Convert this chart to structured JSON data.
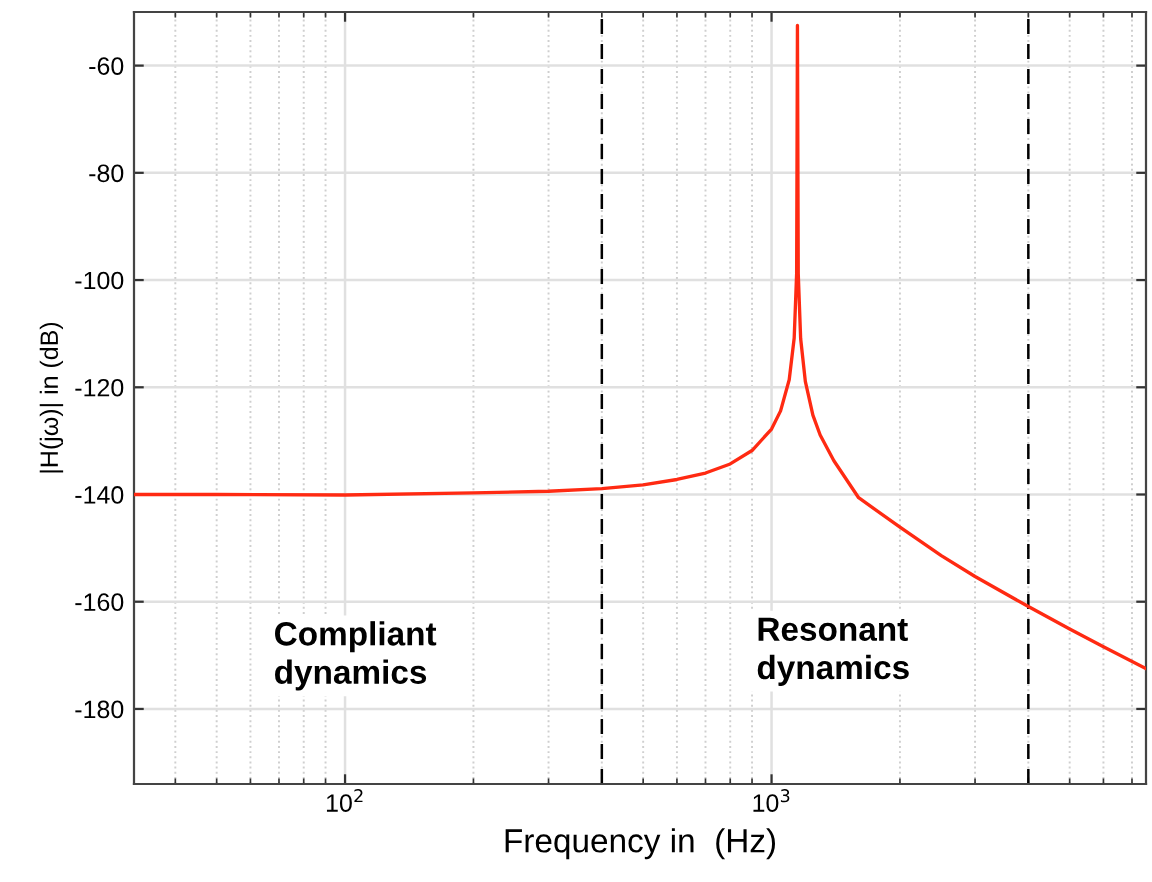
{
  "chart_data": {
    "type": "line",
    "xlabel": "Frequency in  (Hz)",
    "ylabel": "|H(jω)| in (dB)",
    "x": [
      32,
      50,
      100,
      200,
      300,
      400,
      500,
      600,
      700,
      800,
      900,
      1000,
      1050,
      1100,
      1130,
      1145,
      1150,
      1155,
      1170,
      1200,
      1250,
      1300,
      1400,
      1600,
      2000,
      2500,
      3000,
      4000,
      5000,
      6000,
      7550
    ],
    "series": [
      {
        "color": "#ff2a12",
        "values": [
          -140.0,
          -140.0,
          -140.1,
          -139.7,
          -139.4,
          -138.9,
          -138.2,
          -137.2,
          -136.0,
          -134.3,
          -131.8,
          -127.8,
          -124.4,
          -118.6,
          -110.8,
          -98.8,
          -52.5,
          -98.8,
          -110.9,
          -118.9,
          -125.2,
          -128.9,
          -133.7,
          -140.6,
          -146.1,
          -151.4,
          -155.3,
          -160.9,
          -165.1,
          -168.4,
          -172.5
        ]
      }
    ],
    "log": "x",
    "xlim": [
      32,
      7550
    ],
    "ylim": [
      -194,
      -50
    ],
    "xticks": [
      {
        "value": 100,
        "label": "10$^{2}$"
      },
      {
        "value": 1000,
        "label": "10$^{3}$"
      }
    ],
    "yticks": [
      -60,
      -80,
      -100,
      -120,
      -140,
      -160,
      -180
    ],
    "grid": true,
    "marker": "none",
    "line_style": "solid",
    "ref_lines": [
      {
        "axis": "x",
        "value": 400,
        "color": "#000000",
        "line_style": "dashed"
      },
      {
        "axis": "x",
        "value": 4000,
        "color": "#000000",
        "line_style": "dashed"
      }
    ],
    "annotations": [
      "Compliant\ndynamics",
      "Resonant\ndynamics"
    ]
  }
}
